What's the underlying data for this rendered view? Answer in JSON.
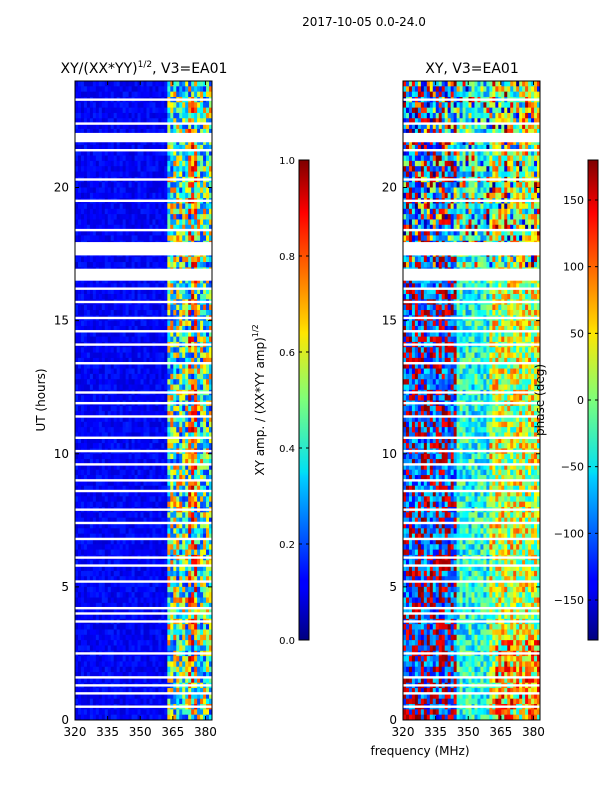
{
  "figure_title": "2017-10-05 0.0-24.0",
  "chart_data": [
    {
      "type": "heatmap",
      "title": "XY/(XX*YY)",
      "title_sup": "1/2",
      "title_suffix": ", V3=EA01",
      "xlabel": "",
      "ylabel": "UT (hours)",
      "xlim": [
        320,
        383
      ],
      "ylim": [
        0,
        24
      ],
      "xticks": [
        320,
        335,
        350,
        365,
        380
      ],
      "yticks": [
        0,
        5,
        10,
        15,
        20
      ],
      "colormap": "jet",
      "colorbar": {
        "label": "XY amp. / (XX*YY amp)",
        "label_sup": "1/2",
        "range": [
          0.0,
          1.0
        ],
        "ticks": [
          "0.0",
          "0.2",
          "0.4",
          "0.6",
          "0.8",
          "1.0"
        ]
      }
    },
    {
      "type": "heatmap",
      "title": "XY, V3=EA01",
      "xlabel": "frequency (MHz)",
      "ylabel": "",
      "xlim": [
        320,
        383
      ],
      "ylim": [
        0,
        24
      ],
      "xticks": [
        320,
        335,
        350,
        365,
        380
      ],
      "yticks": [
        0,
        5,
        10,
        15,
        20
      ],
      "colormap": "jet",
      "colorbar": {
        "label": "phase (deg)",
        "range": [
          -180,
          180
        ],
        "ticks": [
          "150",
          "100",
          "50",
          "0",
          "−50",
          "−100",
          "−150"
        ]
      }
    }
  ],
  "data_gaps_hours": [
    0.5,
    1.0,
    1.3,
    1.6,
    2.5,
    3.7,
    4.0,
    4.2,
    5.2,
    5.8,
    6.1,
    6.8,
    7.4,
    7.9,
    8.6,
    9.0,
    9.6,
    10.1,
    10.6,
    11.4,
    11.9,
    12.3,
    13.4,
    14.1,
    14.6,
    15.1,
    15.7,
    16.2,
    16.8,
    17.8,
    18.4,
    19.5,
    20.3,
    21.4,
    22.4,
    23.3
  ],
  "data_gap_blocks_hours": [
    [
      17.45,
      17.95
    ],
    [
      21.7,
      22.05
    ],
    [
      16.5,
      16.95
    ]
  ]
}
